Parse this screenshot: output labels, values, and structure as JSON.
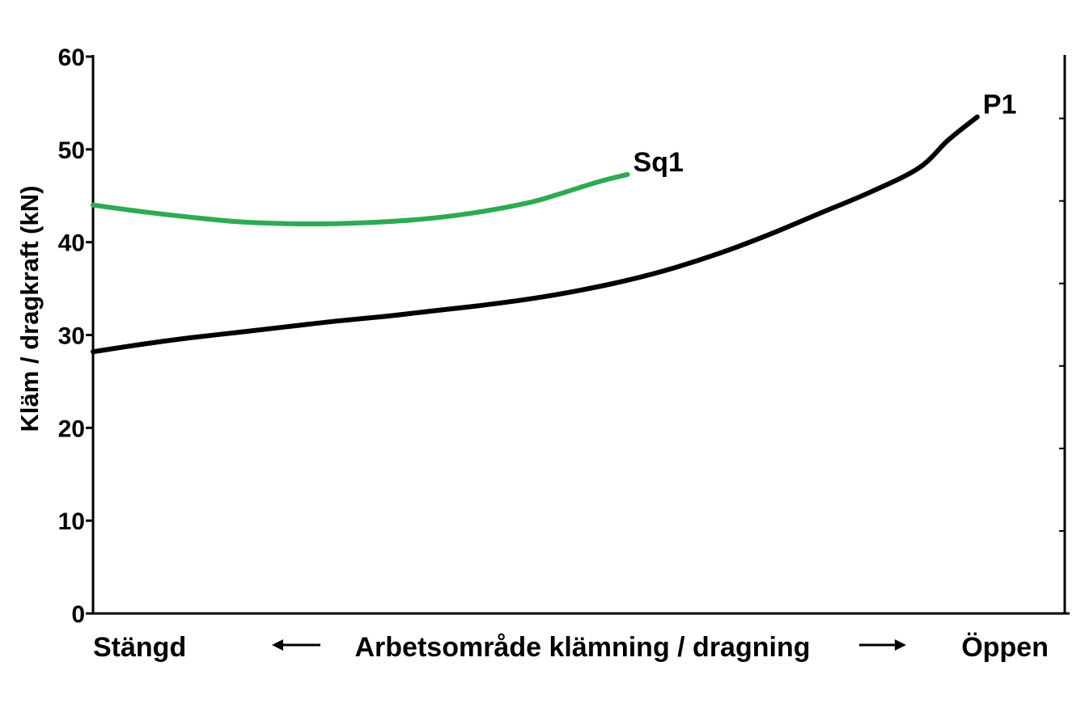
{
  "chart_data": {
    "type": "line",
    "title": "",
    "ylabel": "Kläm / dragkraft (kN)",
    "xlabel": "Arbetsområde klämning / dragning",
    "x_left_label": "Stängd",
    "x_right_label": "Öppen",
    "arrow_left": "⟵",
    "arrow_right": "⟶",
    "ylim": [
      0,
      60
    ],
    "xlim": [
      0,
      100
    ],
    "yticks": [
      0,
      10,
      20,
      30,
      40,
      50,
      60
    ],
    "ytick_labels": [
      "0",
      "10",
      "20",
      "30",
      "40",
      "50",
      "60"
    ],
    "right_axis_ticks": 6,
    "grid": false,
    "legend": "none",
    "series": [
      {
        "name": "Sq1",
        "color": "#2eaa55",
        "x": [
          0,
          5,
          10,
          15,
          20,
          25,
          30,
          35,
          40,
          45,
          48,
          52,
          55
        ],
        "y": [
          44.0,
          43.3,
          42.7,
          42.2,
          42.0,
          42.0,
          42.2,
          42.6,
          43.3,
          44.3,
          45.2,
          46.5,
          47.3
        ]
      },
      {
        "name": "P1",
        "color": "#000000",
        "x": [
          0,
          5,
          10,
          15,
          20,
          25,
          30,
          35,
          40,
          45,
          50,
          55,
          60,
          65,
          70,
          75,
          80,
          85,
          88,
          91
        ],
        "y": [
          28.2,
          29.0,
          29.7,
          30.3,
          30.9,
          31.5,
          32.0,
          32.6,
          33.2,
          33.9,
          34.8,
          35.9,
          37.3,
          39.0,
          41.0,
          43.2,
          45.4,
          48.0,
          51.0,
          53.5
        ]
      }
    ]
  }
}
